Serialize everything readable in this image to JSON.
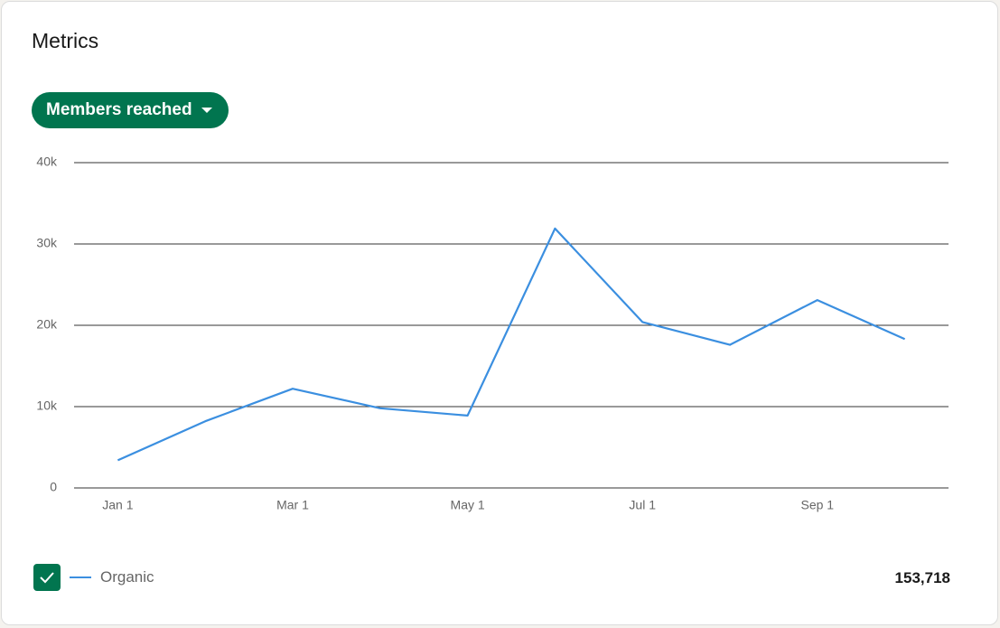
{
  "header": {
    "title": "Metrics"
  },
  "dropdown": {
    "label": "Members reached"
  },
  "chart_data": {
    "type": "line",
    "categories": [
      "Jan 1",
      null,
      "Mar 1",
      null,
      "May 1",
      null,
      "Jul 1",
      null,
      "Sep 1",
      null
    ],
    "series": [
      {
        "name": "Organic",
        "color": "#3b8fe0",
        "values": [
          3400,
          8200,
          12200,
          9800,
          8900,
          31900,
          20400,
          17600,
          23100,
          18300
        ]
      }
    ],
    "ylim": [
      0,
      40000
    ],
    "yticks": [
      0,
      {
        "value": 10000,
        "label": "10k"
      },
      {
        "value": 20000,
        "label": "20k"
      },
      {
        "value": 30000,
        "label": "30k"
      },
      {
        "value": 40000,
        "label": "40k"
      }
    ],
    "grid": true
  },
  "legend": {
    "total": "153,718"
  }
}
